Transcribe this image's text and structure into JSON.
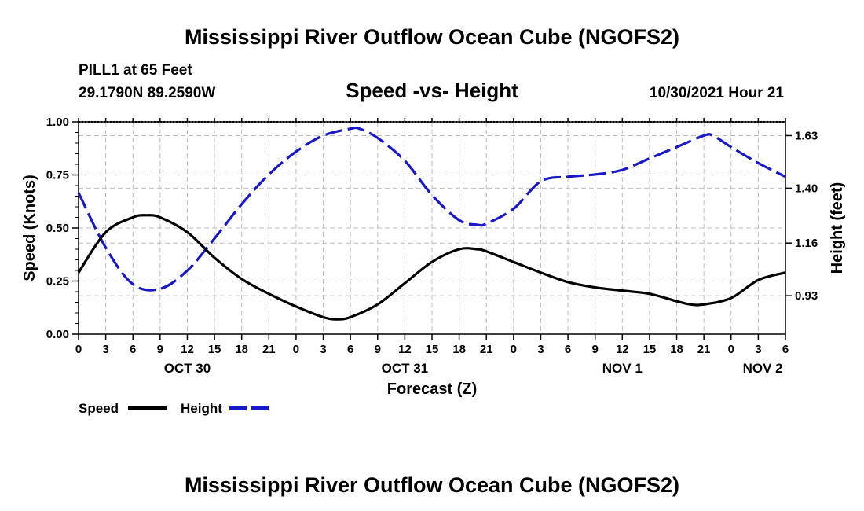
{
  "chart_data": {
    "type": "line",
    "title": "Mississippi River Outflow Ocean Cube (NGOFS2)",
    "footer_title": "Mississippi River Outflow Ocean Cube (NGOFS2)",
    "station": "PILL1 at 65 Feet",
    "location": "29.1790N  89.2590W",
    "subtitle": "Speed -vs- Height",
    "run_time": "10/30/2021 Hour 21",
    "xlabel": "Forecast (Z)",
    "ylabel_left": "Speed (Knots)",
    "ylabel_right": "Height (feet)",
    "ylim_left": [
      0,
      1.0
    ],
    "ylim_right": [
      0.762,
      1.69
    ],
    "yticks_left": [
      "0.00",
      "0.25",
      "0.50",
      "0.75",
      "1.00"
    ],
    "yticks_left_values": [
      0,
      0.25,
      0.5,
      0.75,
      1.0
    ],
    "yticks_right": [
      "0.93",
      "1.16",
      "1.40",
      "1.63"
    ],
    "yticks_right_values": [
      0.93,
      1.16,
      1.4,
      1.63
    ],
    "x_range_hours": [
      0,
      78
    ],
    "xtick_labels": [
      "0",
      "3",
      "6",
      "9",
      "12",
      "15",
      "18",
      "21",
      "0",
      "3",
      "6",
      "9",
      "12",
      "15",
      "18",
      "21",
      "0",
      "3",
      "6",
      "9",
      "12",
      "15",
      "18",
      "21",
      "0",
      "3",
      "6"
    ],
    "date_labels": [
      {
        "label": "OCT 30",
        "hour": 12
      },
      {
        "label": "OCT 31",
        "hour": 36
      },
      {
        "label": "NOV 1",
        "hour": 60
      },
      {
        "label": "NOV 2",
        "hour": 75.5
      }
    ],
    "grid": true,
    "series": [
      {
        "name": "Speed",
        "axis": "left",
        "color": "#000000",
        "dash": "solid",
        "x": [
          0,
          3,
          6,
          7.5,
          9,
          12,
          15,
          18,
          21,
          24,
          27,
          28.5,
          30,
          33,
          36,
          39,
          42,
          44,
          45,
          48,
          51,
          54,
          57,
          60,
          63,
          66,
          67.5,
          69,
          72,
          75,
          78
        ],
        "y": [
          0.29,
          0.48,
          0.55,
          0.56,
          0.55,
          0.48,
          0.36,
          0.26,
          0.19,
          0.13,
          0.08,
          0.07,
          0.08,
          0.14,
          0.24,
          0.34,
          0.4,
          0.4,
          0.39,
          0.34,
          0.29,
          0.245,
          0.22,
          0.205,
          0.19,
          0.155,
          0.14,
          0.14,
          0.17,
          0.255,
          0.29
        ]
      },
      {
        "name": "Height",
        "axis": "right",
        "color": "#1818c8",
        "dash": "dashed",
        "x": [
          0,
          3,
          6,
          9,
          12,
          15,
          18,
          21,
          24,
          27,
          30,
          31,
          33,
          36,
          39,
          42,
          44,
          45,
          48,
          51,
          54,
          57,
          60,
          63,
          66,
          69,
          70,
          72,
          75,
          78
        ],
        "y": [
          1.38,
          1.14,
          0.98,
          0.96,
          1.04,
          1.18,
          1.33,
          1.46,
          1.56,
          1.63,
          1.66,
          1.66,
          1.62,
          1.52,
          1.37,
          1.26,
          1.24,
          1.245,
          1.31,
          1.43,
          1.45,
          1.46,
          1.48,
          1.53,
          1.58,
          1.63,
          1.63,
          1.58,
          1.51,
          1.45
        ]
      }
    ]
  },
  "legend": {
    "items": [
      {
        "label": "Speed",
        "color": "#000000",
        "dash": "solid"
      },
      {
        "label": "Height",
        "color": "#1818c8",
        "dash": "dashed"
      }
    ]
  }
}
